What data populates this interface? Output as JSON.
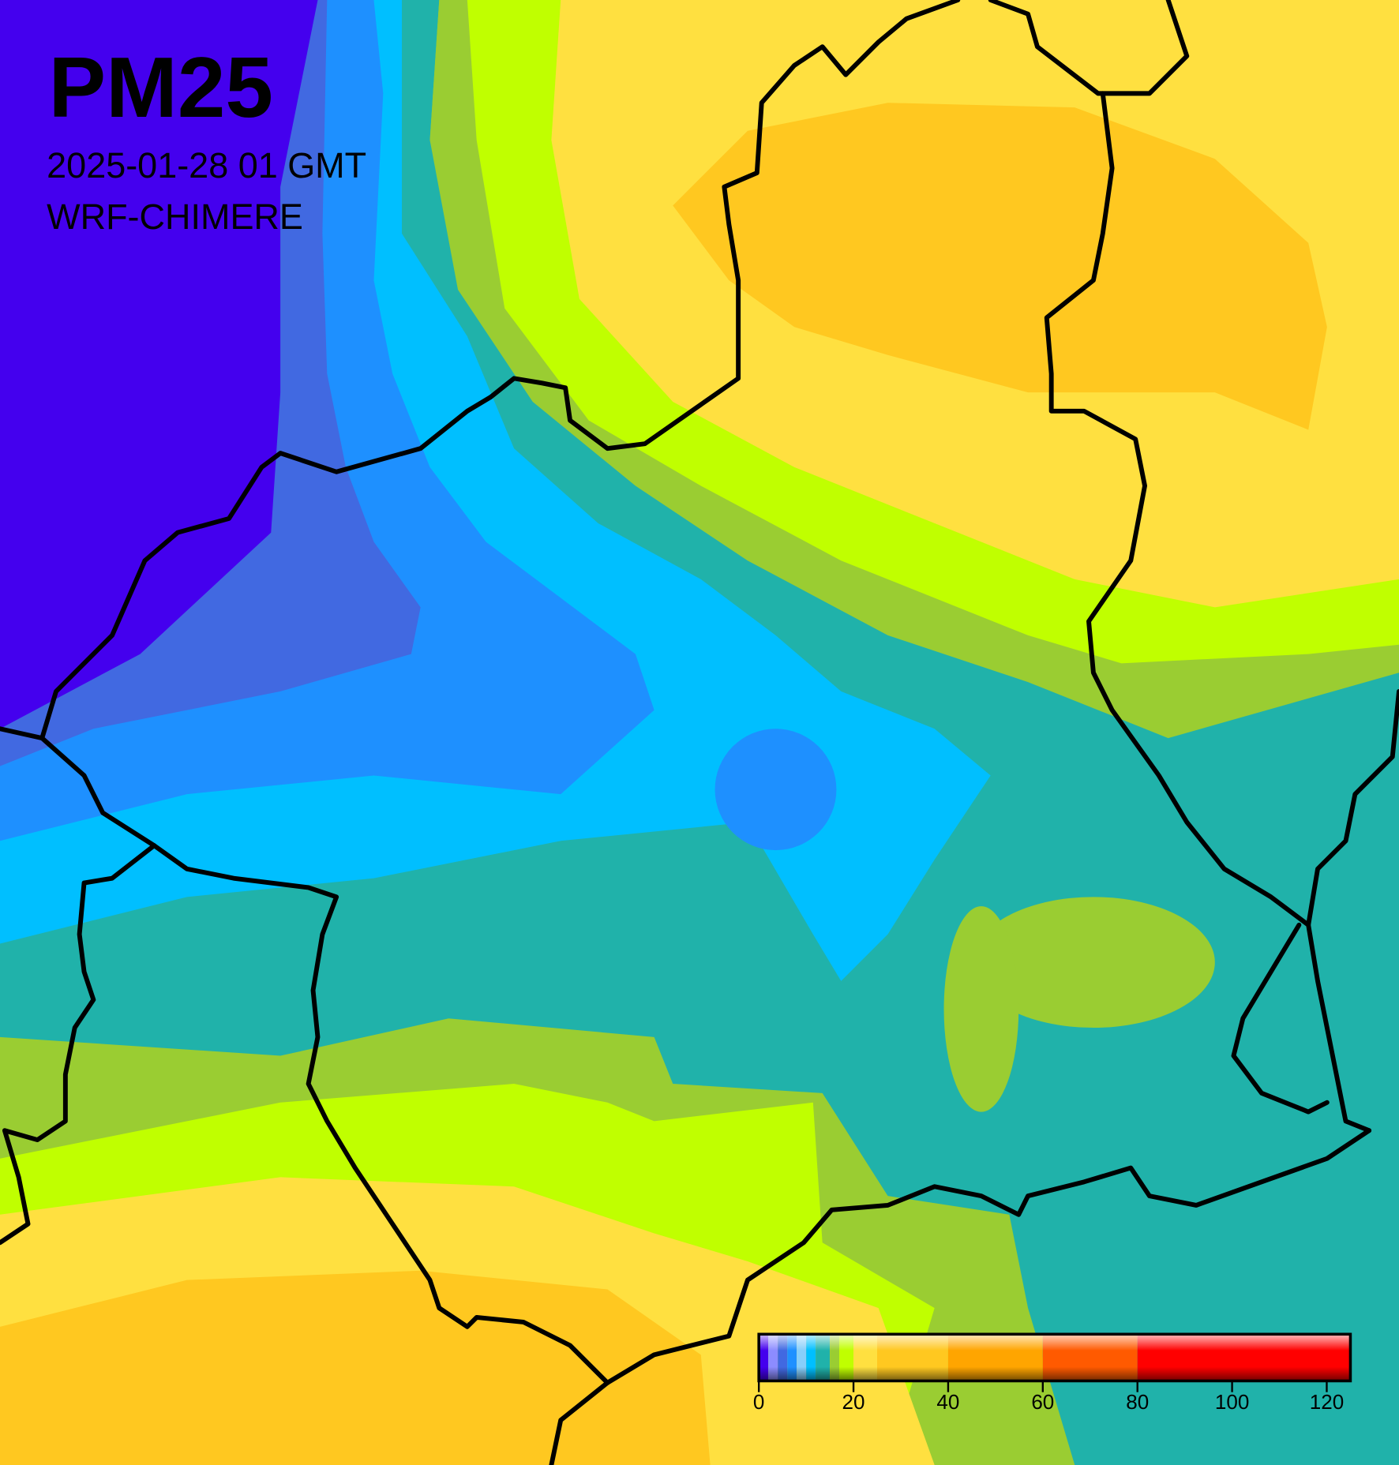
{
  "header": {
    "title": "PM25",
    "date": "2025-01-28 01 GMT",
    "model": "WRF-CHIMERE"
  },
  "colorbar": {
    "lim": [
      0,
      125
    ],
    "ticks": [
      0,
      20,
      40,
      60,
      80,
      100,
      120
    ],
    "segments": [
      {
        "from": 0,
        "to": 2,
        "color": "#4400ee"
      },
      {
        "from": 2,
        "to": 4,
        "color": "#8c8cff"
      },
      {
        "from": 4,
        "to": 6,
        "color": "#4169e1"
      },
      {
        "from": 6,
        "to": 8,
        "color": "#1e90ff"
      },
      {
        "from": 8,
        "to": 10,
        "color": "#87cefa"
      },
      {
        "from": 10,
        "to": 12,
        "color": "#00bfff"
      },
      {
        "from": 12,
        "to": 15,
        "color": "#20b2aa"
      },
      {
        "from": 15,
        "to": 17,
        "color": "#9acd32"
      },
      {
        "from": 17,
        "to": 20,
        "color": "#c0ff00"
      },
      {
        "from": 20,
        "to": 25,
        "color": "#ffe040"
      },
      {
        "from": 25,
        "to": 40,
        "color": "#ffc820"
      },
      {
        "from": 40,
        "to": 60,
        "color": "#ffa500"
      },
      {
        "from": 60,
        "to": 80,
        "color": "#ff5a00"
      },
      {
        "from": 80,
        "to": 125,
        "color": "#ff0000"
      }
    ]
  }
}
